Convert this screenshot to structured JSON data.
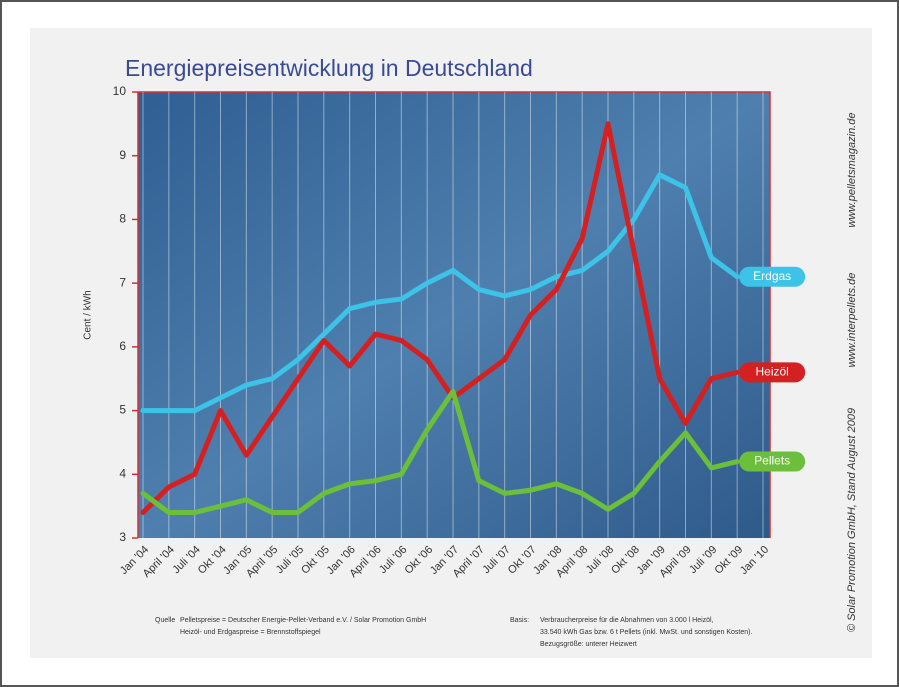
{
  "chart_data": {
    "type": "line",
    "title": "Energiepreisentwicklung in Deutschland",
    "y_label": "Cent / kWh",
    "categories": [
      "Jan '04",
      "April '04",
      "Juli '04",
      "Okt '04",
      "Jan '05",
      "April '05",
      "Juli '05",
      "Okt '05",
      "Jan '06",
      "April '06",
      "Juli '06",
      "Okt '06",
      "Jan '07",
      "April '07",
      "Juli '07",
      "Okt '07",
      "Jan '08",
      "April '08",
      "Juli '08",
      "Okt '08",
      "Jan '09",
      "April '09",
      "Juli '09",
      "Okt '09",
      "Jan '10"
    ],
    "series": [
      {
        "name": "Erdgas",
        "color": "#3ec3e8",
        "values": [
          5.0,
          5.0,
          5.0,
          5.2,
          5.4,
          5.5,
          5.8,
          6.2,
          6.6,
          6.7,
          6.75,
          7.0,
          7.2,
          6.9,
          6.8,
          6.9,
          7.1,
          7.2,
          7.5,
          8.0,
          8.7,
          8.5,
          7.4,
          7.1,
          null
        ]
      },
      {
        "name": "Heizöl",
        "color": "#d42020",
        "values": [
          3.4,
          3.8,
          4.0,
          5.0,
          4.3,
          4.9,
          5.5,
          6.1,
          5.7,
          6.2,
          6.1,
          5.8,
          5.2,
          5.5,
          5.8,
          6.5,
          6.9,
          7.7,
          9.5,
          7.5,
          5.5,
          4.8,
          5.5,
          5.6,
          null
        ]
      },
      {
        "name": "Pellets",
        "color": "#6cbf3a",
        "values": [
          3.7,
          3.4,
          3.4,
          3.5,
          3.6,
          3.4,
          3.4,
          3.7,
          3.85,
          3.9,
          4.0,
          4.7,
          5.3,
          3.9,
          3.7,
          3.75,
          3.85,
          3.7,
          3.45,
          3.7,
          4.2,
          4.65,
          4.1,
          4.2,
          null
        ]
      }
    ],
    "ylim": [
      3,
      10
    ],
    "yticks": [
      3,
      4,
      5,
      6,
      7,
      8,
      9,
      10
    ],
    "footer": {
      "source_label": "Quelle",
      "source_lines": [
        "Pelletspreise = Deutscher Energie-Pellet-Verband e.V. / Solar Promotion GmbH",
        "Heizöl- und Erdgaspreise = Brennstoffspiegel"
      ],
      "basis_label": "Basis:",
      "basis_lines": [
        "Verbraucherpreise für die Abnahmen von 3.000 l Heizöl,",
        "33.540 kWh Gas bzw. 6 t Pellets (inkl. MwSt. und sonstigen Kosten).",
        "Bezugsgröße: unterer Heizwert"
      ]
    },
    "side_texts": [
      "www.pelletsmagazin.de",
      "www.interpellets.de",
      "© Solar Promotion GmbH, Stand August 2009"
    ]
  }
}
